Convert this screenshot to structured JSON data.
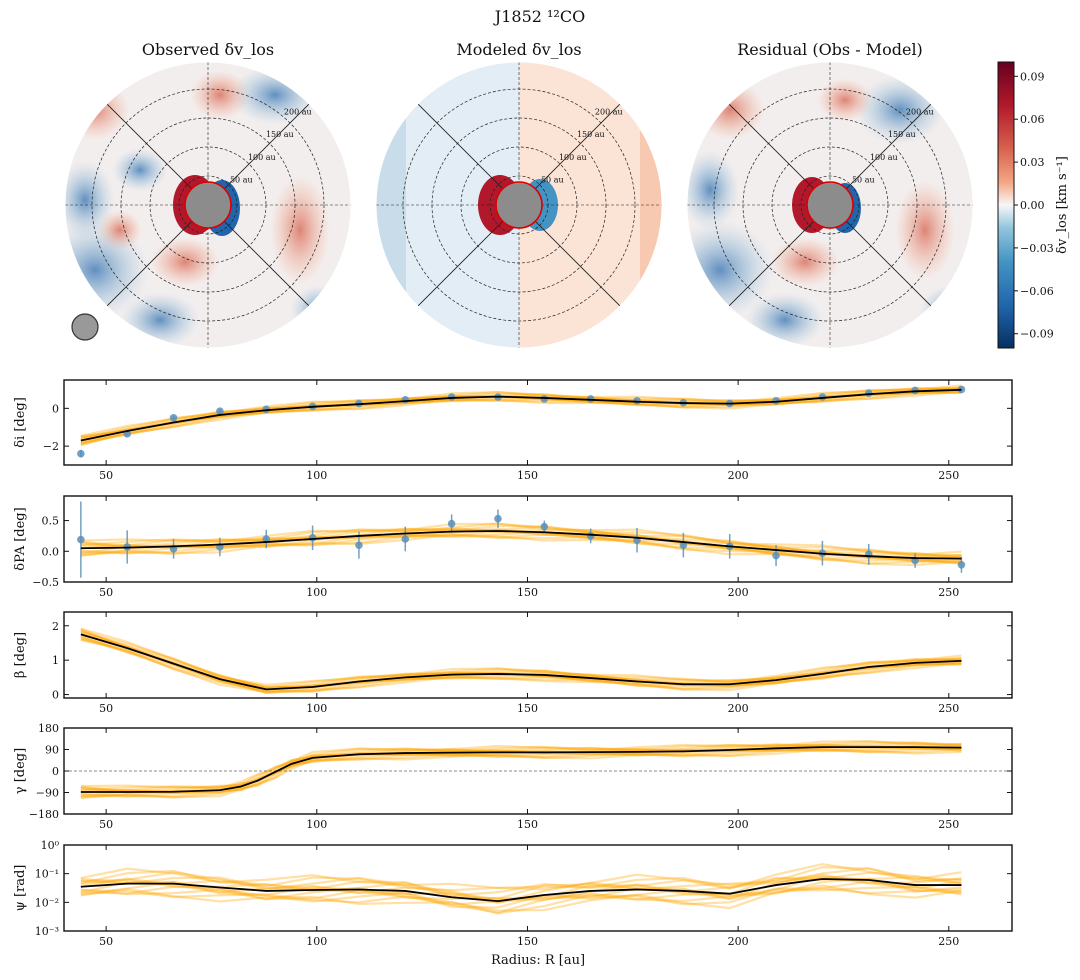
{
  "title": "J1852 ¹²CO",
  "maps": {
    "observed_title": "Observed δv_los",
    "model_title": "Modeled δv_los",
    "residual_title": "Residual (Obs - Model)",
    "ring_labels": [
      "50 au",
      "100 au",
      "150 au",
      "200 au"
    ]
  },
  "colorbar": {
    "label": "δv_los [km s⁻¹]",
    "ticks": [
      "0.09",
      "0.06",
      "0.03",
      "0.00",
      "−0.03",
      "−0.06",
      "−0.09"
    ],
    "vmin": -0.1,
    "vmax": 0.1,
    "colors": {
      "high": "#67001f",
      "mid": "#f7f7f7",
      "low": "#053061"
    }
  },
  "colors": {
    "fit_line": "#000000",
    "posterior": "#ffa500",
    "points": "#5b8fb9"
  },
  "x_axis_label": "Radius: R [au]",
  "chart_data": [
    {
      "type": "line",
      "ylabel": "δi [deg]",
      "xlim": [
        40,
        265
      ],
      "ylim": [
        -3.0,
        1.5
      ],
      "xticks": [
        50,
        100,
        150,
        200,
        250
      ],
      "yticks": [
        -2,
        0
      ],
      "ytick_labels": [
        "−2",
        "0"
      ],
      "model_x": [
        44,
        55,
        66,
        77,
        88,
        99,
        110,
        121,
        132,
        143,
        154,
        165,
        176,
        187,
        198,
        209,
        220,
        231,
        242,
        253
      ],
      "model_y": [
        -1.7,
        -1.2,
        -0.75,
        -0.35,
        -0.1,
        0.08,
        0.22,
        0.38,
        0.55,
        0.62,
        0.55,
        0.45,
        0.35,
        0.28,
        0.25,
        0.35,
        0.55,
        0.75,
        0.9,
        0.98
      ],
      "points_x": [
        44,
        55,
        66,
        77,
        88,
        99,
        110,
        121,
        132,
        143,
        154,
        165,
        176,
        187,
        198,
        209,
        220,
        231,
        242,
        253
      ],
      "points_y": [
        -2.4,
        -1.35,
        -0.5,
        -0.15,
        -0.05,
        0.1,
        0.25,
        0.45,
        0.6,
        0.6,
        0.5,
        0.5,
        0.4,
        0.3,
        0.25,
        0.4,
        0.6,
        0.8,
        0.95,
        1.0
      ],
      "points_err": [
        0.2,
        0.1,
        0.1,
        0.1,
        0.1,
        0.1,
        0.1,
        0.1,
        0.1,
        0.1,
        0.1,
        0.1,
        0.1,
        0.1,
        0.1,
        0.1,
        0.1,
        0.1,
        0.1,
        0.1
      ],
      "band": 0.18
    },
    {
      "type": "line",
      "ylabel": "δPA [deg]",
      "xlim": [
        40,
        265
      ],
      "ylim": [
        -0.5,
        0.9
      ],
      "xticks": [
        50,
        100,
        150,
        200,
        250
      ],
      "yticks": [
        -0.5,
        0.0,
        0.5
      ],
      "ytick_labels": [
        "−0.5",
        "0.0",
        "0.5"
      ],
      "model_x": [
        44,
        55,
        66,
        77,
        88,
        99,
        110,
        121,
        132,
        143,
        154,
        165,
        176,
        187,
        198,
        209,
        220,
        231,
        242,
        253
      ],
      "model_y": [
        0.05,
        0.06,
        0.08,
        0.11,
        0.15,
        0.2,
        0.25,
        0.29,
        0.32,
        0.33,
        0.31,
        0.27,
        0.22,
        0.15,
        0.08,
        0.02,
        -0.04,
        -0.08,
        -0.11,
        -0.12
      ],
      "points_x": [
        44,
        55,
        66,
        77,
        88,
        99,
        110,
        121,
        132,
        143,
        154,
        165,
        176,
        187,
        198,
        209,
        220,
        231,
        242,
        253
      ],
      "points_y": [
        0.19,
        0.07,
        0.04,
        0.07,
        0.2,
        0.22,
        0.1,
        0.2,
        0.45,
        0.53,
        0.4,
        0.25,
        0.18,
        0.1,
        0.08,
        -0.07,
        -0.03,
        -0.05,
        -0.15,
        -0.22
      ],
      "points_err": [
        0.62,
        0.27,
        0.16,
        0.15,
        0.15,
        0.2,
        0.22,
        0.2,
        0.15,
        0.15,
        0.1,
        0.12,
        0.2,
        0.2,
        0.2,
        0.17,
        0.2,
        0.17,
        0.12,
        0.13
      ],
      "band": 0.09
    },
    {
      "type": "line",
      "ylabel": "β [deg]",
      "xlim": [
        40,
        265
      ],
      "ylim": [
        -0.1,
        2.4
      ],
      "xticks": [
        50,
        100,
        150,
        200,
        250
      ],
      "yticks": [
        0,
        1,
        2
      ],
      "ytick_labels": [
        "0",
        "1",
        "2"
      ],
      "model_x": [
        44,
        55,
        66,
        77,
        88,
        99,
        110,
        121,
        132,
        143,
        154,
        165,
        176,
        187,
        198,
        209,
        220,
        231,
        242,
        253
      ],
      "model_y": [
        1.75,
        1.35,
        0.9,
        0.45,
        0.15,
        0.22,
        0.38,
        0.5,
        0.58,
        0.6,
        0.57,
        0.48,
        0.38,
        0.3,
        0.3,
        0.42,
        0.6,
        0.8,
        0.92,
        0.98
      ],
      "band": 0.12
    },
    {
      "type": "line",
      "ylabel": "γ [deg]",
      "xlim": [
        40,
        265
      ],
      "ylim": [
        -180,
        180
      ],
      "xticks": [
        50,
        100,
        150,
        200,
        250
      ],
      "yticks": [
        -180,
        -90,
        0,
        90,
        180
      ],
      "ytick_labels": [
        "−180",
        "−90",
        "0",
        "90",
        "180"
      ],
      "hline": 0,
      "model_x": [
        44,
        55,
        66,
        77,
        82,
        86,
        90,
        94,
        99,
        110,
        121,
        132,
        143,
        154,
        165,
        176,
        187,
        198,
        209,
        220,
        231,
        242,
        253
      ],
      "model_y": [
        -88,
        -88,
        -87,
        -80,
        -65,
        -40,
        -5,
        30,
        55,
        70,
        75,
        77,
        78,
        78,
        79,
        80,
        82,
        88,
        95,
        100,
        100,
        100,
        98
      ],
      "band": 18
    },
    {
      "type": "line",
      "ylabel": "ψ [rad]",
      "yscale": "log",
      "xlim": [
        40,
        265
      ],
      "ylim": [
        0.001,
        1
      ],
      "xticks": [
        50,
        100,
        150,
        200,
        250
      ],
      "yticks": [
        0.001,
        0.01,
        0.1,
        1
      ],
      "ytick_labels": [
        "10⁻³",
        "10⁻²",
        "10⁻¹",
        "10⁰"
      ],
      "model_x": [
        44,
        55,
        66,
        77,
        88,
        99,
        110,
        121,
        132,
        143,
        154,
        165,
        176,
        187,
        198,
        209,
        220,
        231,
        242,
        253
      ],
      "model_y": [
        0.035,
        0.045,
        0.045,
        0.033,
        0.025,
        0.027,
        0.028,
        0.025,
        0.015,
        0.011,
        0.018,
        0.025,
        0.028,
        0.025,
        0.02,
        0.04,
        0.065,
        0.06,
        0.04,
        0.04
      ],
      "band": 0.35
    }
  ]
}
